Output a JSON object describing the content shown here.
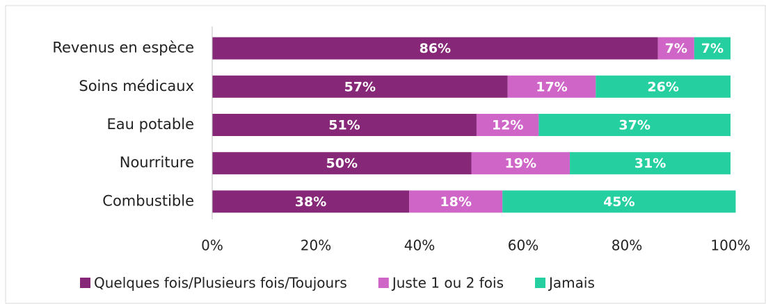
{
  "chart_data": {
    "type": "bar",
    "orientation": "horizontal",
    "stacked": true,
    "categories": [
      "Revenus en espèce",
      "Soins médicaux",
      "Eau potable",
      "Nourriture",
      "Combustible"
    ],
    "series": [
      {
        "name": "Quelques fois/Plusieurs fois/Toujours",
        "color": "#862877",
        "values": [
          86,
          57,
          51,
          50,
          38
        ],
        "value_labels": [
          "86%",
          "57%",
          "51%",
          "50%",
          "38%"
        ]
      },
      {
        "name": "Juste 1 ou 2 fois",
        "color": "#d065c8",
        "values": [
          7,
          17,
          12,
          19,
          18
        ],
        "value_labels": [
          "7%",
          "17%",
          "12%",
          "19%",
          "18%"
        ]
      },
      {
        "name": "Jamais",
        "color": "#25cfa0",
        "values": [
          7,
          26,
          37,
          31,
          45
        ],
        "value_labels": [
          "7%",
          "26%",
          "37%",
          "31%",
          "45%"
        ]
      }
    ],
    "xlim": [
      0,
      100
    ],
    "xticks": [
      {
        "value": 0,
        "label": "0%"
      },
      {
        "value": 20,
        "label": "20%"
      },
      {
        "value": 40,
        "label": "40%"
      },
      {
        "value": 60,
        "label": "60%"
      },
      {
        "value": 80,
        "label": "80%"
      },
      {
        "value": 100,
        "label": "100%"
      }
    ],
    "legend": "bottom"
  }
}
